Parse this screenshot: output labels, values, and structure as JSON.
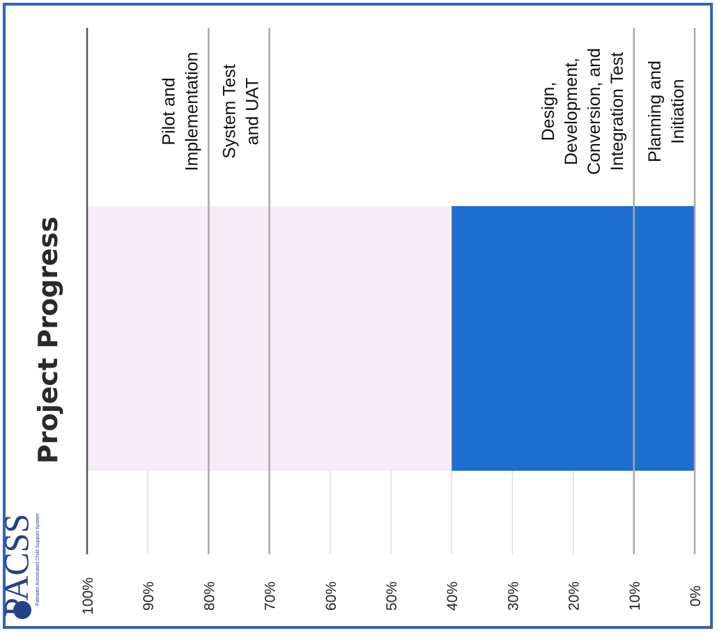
{
  "logo": {
    "letters": "PACSS",
    "tagline": "Palmetto Automated Child Support System"
  },
  "chart_data": {
    "type": "bar",
    "orientation": "vertical-stacked-single",
    "title": "Project Progress",
    "xlabel": "",
    "ylabel": "",
    "ylim": [
      0,
      100
    ],
    "ticks": [
      "0%",
      "10%",
      "20%",
      "30%",
      "40%",
      "50%",
      "60%",
      "70%",
      "80%",
      "90%",
      "100%"
    ],
    "tick_values": [
      0,
      10,
      20,
      30,
      40,
      50,
      60,
      70,
      80,
      90,
      100
    ],
    "progress": 40,
    "colors": {
      "completed": "#1f6fd0",
      "remaining": "#f5ecf6",
      "phase_line": "#a8a8a8",
      "grid": "#dcdcdc"
    },
    "phases": [
      {
        "label_lines": [
          "Planning and",
          "Initiation"
        ],
        "start": 0,
        "end": 10
      },
      {
        "label_lines": [
          "Design,",
          "Development,",
          "Conversion, and",
          "Integration Test"
        ],
        "start": 10,
        "end": 70
      },
      {
        "label_lines": [
          "System Test",
          "and UAT"
        ],
        "start": 70,
        "end": 80
      },
      {
        "label_lines": [
          "Pilot and",
          "Implementation"
        ],
        "start": 80,
        "end": 100
      }
    ]
  }
}
